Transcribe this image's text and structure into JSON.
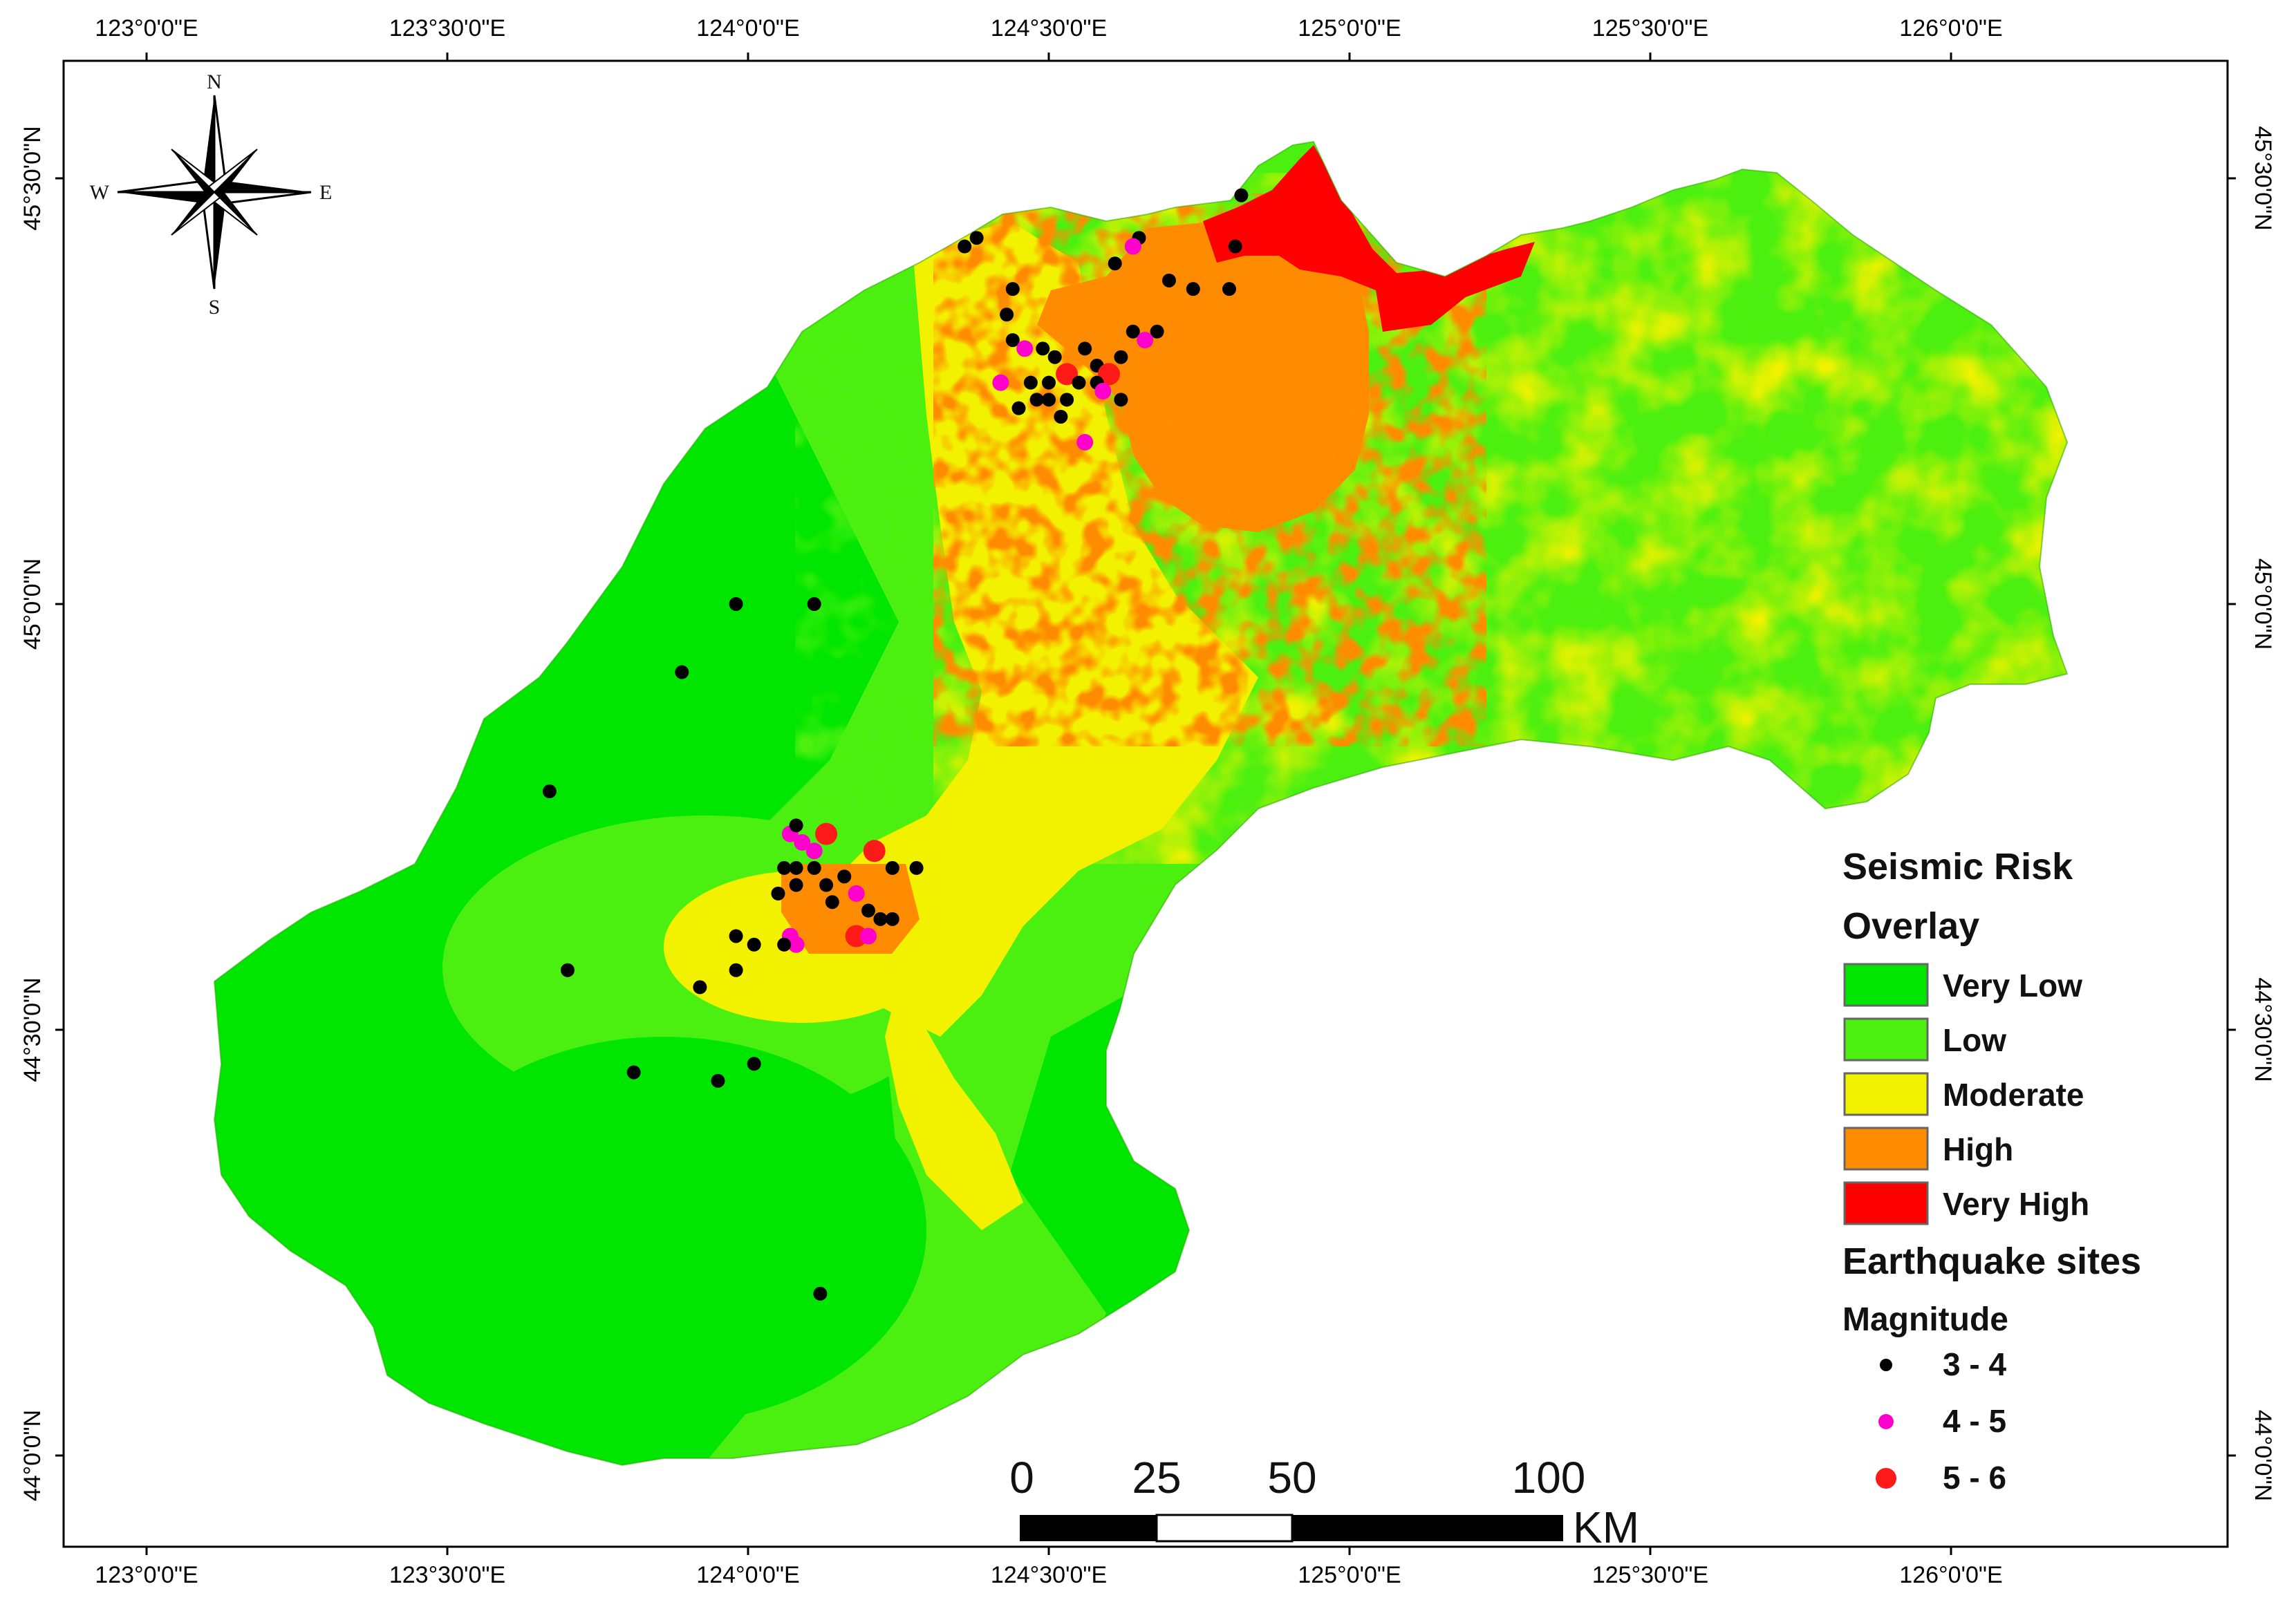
{
  "map": {
    "longitude_ticks": [
      {
        "label": "123°0'0\"E",
        "lon": 123.0
      },
      {
        "label": "123°30'0\"E",
        "lon": 123.5
      },
      {
        "label": "124°0'0\"E",
        "lon": 124.0
      },
      {
        "label": "124°30'0\"E",
        "lon": 124.5
      },
      {
        "label": "125°0'0\"E",
        "lon": 125.0
      },
      {
        "label": "125°30'0\"E",
        "lon": 125.5
      },
      {
        "label": "126°0'0\"E",
        "lon": 126.0
      }
    ],
    "latitude_ticks": [
      {
        "label": "45°30'0\"N",
        "lat": 45.5
      },
      {
        "label": "45°0'0\"N",
        "lat": 45.0
      },
      {
        "label": "44°30'0\"N",
        "lat": 44.5
      },
      {
        "label": "44°0'0\"N",
        "lat": 44.0
      }
    ],
    "compass": {
      "n": "N",
      "s": "S",
      "e": "E",
      "w": "W"
    }
  },
  "legend": {
    "title_line1": "Seismic Risk",
    "title_line2": "Overlay",
    "classes": [
      {
        "label": "Very Low",
        "color": "#00e600"
      },
      {
        "label": "Low",
        "color": "#4cf010"
      },
      {
        "label": "Moderate",
        "color": "#f2f200"
      },
      {
        "label": "High",
        "color": "#ff8c00"
      },
      {
        "label": "Very High",
        "color": "#ff0000"
      }
    ],
    "sites_title": "Earthquake sites",
    "magnitude_title": "Magnitude",
    "magnitudes": [
      {
        "label": "3 - 4",
        "color": "#000000"
      },
      {
        "label": "4 - 5",
        "color": "#ff00cc"
      },
      {
        "label": "5 - 6",
        "color": "#ff1a1a"
      }
    ]
  },
  "scale_bar": {
    "labels": [
      "0",
      "25",
      "50",
      "100"
    ],
    "unit": "KM"
  },
  "earthquakes": [
    {
      "lon": 124.82,
      "lat": 45.48,
      "mag": "3-4"
    },
    {
      "lon": 124.81,
      "lat": 45.42,
      "mag": "3-4"
    },
    {
      "lon": 124.65,
      "lat": 45.43,
      "mag": "3-4"
    },
    {
      "lon": 124.61,
      "lat": 45.4,
      "mag": "3-4"
    },
    {
      "lon": 124.74,
      "lat": 45.37,
      "mag": "3-4"
    },
    {
      "lon": 124.8,
      "lat": 45.37,
      "mag": "3-4"
    },
    {
      "lon": 124.7,
      "lat": 45.38,
      "mag": "3-4"
    },
    {
      "lon": 124.38,
      "lat": 45.43,
      "mag": "3-4"
    },
    {
      "lon": 124.36,
      "lat": 45.42,
      "mag": "3-4"
    },
    {
      "lon": 124.64,
      "lat": 45.42,
      "mag": "4-5"
    },
    {
      "lon": 124.44,
      "lat": 45.37,
      "mag": "3-4"
    },
    {
      "lon": 124.43,
      "lat": 45.34,
      "mag": "3-4"
    },
    {
      "lon": 124.64,
      "lat": 45.32,
      "mag": "3-4"
    },
    {
      "lon": 124.68,
      "lat": 45.32,
      "mag": "3-4"
    },
    {
      "lon": 124.44,
      "lat": 45.31,
      "mag": "3-4"
    },
    {
      "lon": 124.46,
      "lat": 45.3,
      "mag": "4-5"
    },
    {
      "lon": 124.49,
      "lat": 45.3,
      "mag": "3-4"
    },
    {
      "lon": 124.51,
      "lat": 45.29,
      "mag": "3-4"
    },
    {
      "lon": 124.56,
      "lat": 45.3,
      "mag": "3-4"
    },
    {
      "lon": 124.62,
      "lat": 45.29,
      "mag": "3-4"
    },
    {
      "lon": 124.58,
      "lat": 45.28,
      "mag": "3-4"
    },
    {
      "lon": 124.6,
      "lat": 45.27,
      "mag": "5-6"
    },
    {
      "lon": 124.66,
      "lat": 45.31,
      "mag": "4-5"
    },
    {
      "lon": 124.53,
      "lat": 45.27,
      "mag": "5-6"
    },
    {
      "lon": 124.47,
      "lat": 45.26,
      "mag": "3-4"
    },
    {
      "lon": 124.5,
      "lat": 45.26,
      "mag": "3-4"
    },
    {
      "lon": 124.42,
      "lat": 45.26,
      "mag": "4-5"
    },
    {
      "lon": 124.55,
      "lat": 45.26,
      "mag": "3-4"
    },
    {
      "lon": 124.58,
      "lat": 45.26,
      "mag": "3-4"
    },
    {
      "lon": 124.59,
      "lat": 45.25,
      "mag": "4-5"
    },
    {
      "lon": 124.48,
      "lat": 45.24,
      "mag": "3-4"
    },
    {
      "lon": 124.5,
      "lat": 45.24,
      "mag": "3-4"
    },
    {
      "lon": 124.53,
      "lat": 45.24,
      "mag": "3-4"
    },
    {
      "lon": 124.62,
      "lat": 45.24,
      "mag": "3-4"
    },
    {
      "lon": 124.45,
      "lat": 45.23,
      "mag": "3-4"
    },
    {
      "lon": 124.52,
      "lat": 45.22,
      "mag": "3-4"
    },
    {
      "lon": 124.56,
      "lat": 45.19,
      "mag": "4-5"
    },
    {
      "lon": 123.98,
      "lat": 45.0,
      "mag": "3-4"
    },
    {
      "lon": 124.11,
      "lat": 45.0,
      "mag": "3-4"
    },
    {
      "lon": 123.89,
      "lat": 44.92,
      "mag": "3-4"
    },
    {
      "lon": 123.67,
      "lat": 44.78,
      "mag": "3-4"
    },
    {
      "lon": 124.07,
      "lat": 44.73,
      "mag": "4-5"
    },
    {
      "lon": 124.13,
      "lat": 44.73,
      "mag": "5-6"
    },
    {
      "lon": 124.08,
      "lat": 44.74,
      "mag": "3-4"
    },
    {
      "lon": 124.09,
      "lat": 44.72,
      "mag": "4-5"
    },
    {
      "lon": 124.11,
      "lat": 44.71,
      "mag": "4-5"
    },
    {
      "lon": 124.21,
      "lat": 44.71,
      "mag": "5-6"
    },
    {
      "lon": 124.06,
      "lat": 44.69,
      "mag": "3-4"
    },
    {
      "lon": 124.08,
      "lat": 44.69,
      "mag": "3-4"
    },
    {
      "lon": 124.11,
      "lat": 44.69,
      "mag": "3-4"
    },
    {
      "lon": 124.16,
      "lat": 44.68,
      "mag": "3-4"
    },
    {
      "lon": 124.24,
      "lat": 44.69,
      "mag": "3-4"
    },
    {
      "lon": 124.28,
      "lat": 44.69,
      "mag": "3-4"
    },
    {
      "lon": 124.05,
      "lat": 44.66,
      "mag": "3-4"
    },
    {
      "lon": 124.08,
      "lat": 44.67,
      "mag": "3-4"
    },
    {
      "lon": 124.13,
      "lat": 44.67,
      "mag": "3-4"
    },
    {
      "lon": 124.18,
      "lat": 44.66,
      "mag": "4-5"
    },
    {
      "lon": 124.14,
      "lat": 44.65,
      "mag": "3-4"
    },
    {
      "lon": 124.2,
      "lat": 44.64,
      "mag": "3-4"
    },
    {
      "lon": 124.22,
      "lat": 44.63,
      "mag": "3-4"
    },
    {
      "lon": 124.24,
      "lat": 44.63,
      "mag": "3-4"
    },
    {
      "lon": 123.98,
      "lat": 44.61,
      "mag": "3-4"
    },
    {
      "lon": 124.01,
      "lat": 44.6,
      "mag": "3-4"
    },
    {
      "lon": 124.07,
      "lat": 44.61,
      "mag": "4-5"
    },
    {
      "lon": 124.08,
      "lat": 44.6,
      "mag": "4-5"
    },
    {
      "lon": 124.06,
      "lat": 44.6,
      "mag": "3-4"
    },
    {
      "lon": 124.18,
      "lat": 44.61,
      "mag": "5-6"
    },
    {
      "lon": 124.2,
      "lat": 44.61,
      "mag": "4-5"
    },
    {
      "lon": 123.7,
      "lat": 44.57,
      "mag": "3-4"
    },
    {
      "lon": 123.98,
      "lat": 44.57,
      "mag": "3-4"
    },
    {
      "lon": 123.92,
      "lat": 44.55,
      "mag": "3-4"
    },
    {
      "lon": 124.01,
      "lat": 44.46,
      "mag": "3-4"
    },
    {
      "lon": 123.81,
      "lat": 44.45,
      "mag": "3-4"
    },
    {
      "lon": 123.95,
      "lat": 44.44,
      "mag": "3-4"
    },
    {
      "lon": 124.12,
      "lat": 44.19,
      "mag": "3-4"
    }
  ]
}
